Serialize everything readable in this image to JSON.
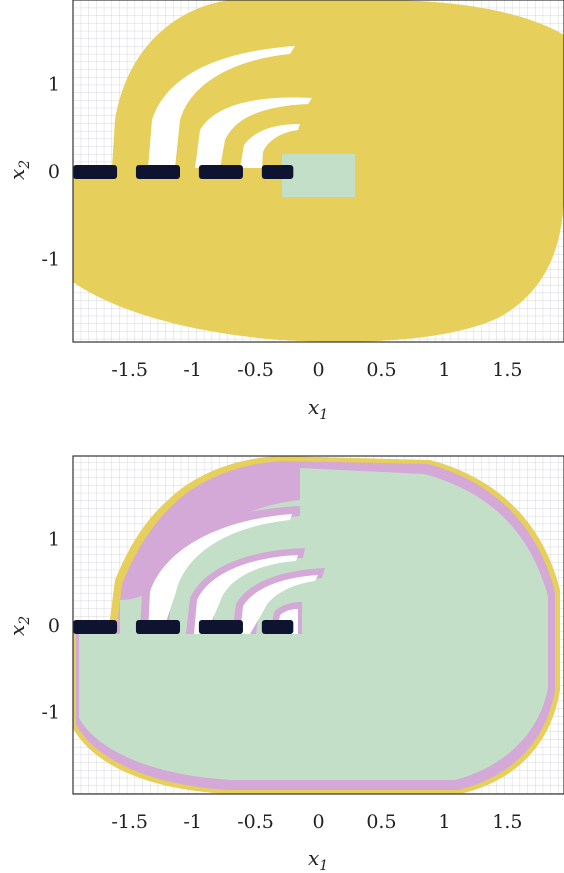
{
  "colors": {
    "yellow": "#e6cf5a",
    "green": "#c3dfc8",
    "purple": "#d4a9d8",
    "obstacle": "#0e1330",
    "grid": "#c9c9cf",
    "frame": "#333333"
  },
  "chart_data": [
    {
      "type": "heatmap",
      "xlim": [
        -1.95,
        1.95
      ],
      "ylim": [
        -1.95,
        1.95
      ],
      "grid": true,
      "xticks": [
        "-1.5",
        "-1",
        "-0.5",
        "0",
        "0.5",
        "1",
        "1.5"
      ],
      "xtick_values": [
        -1.5,
        -1,
        -0.5,
        0,
        0.5,
        1,
        1.5
      ],
      "yticks": [
        "1",
        "0",
        "-1"
      ],
      "ytick_values": [
        1,
        0,
        -1
      ],
      "xlabel": "x",
      "xlabel_sub": "1",
      "ylabel": "x",
      "ylabel_sub": "2",
      "obstacles": [
        [
          -1.95,
          -1.6
        ],
        [
          -1.45,
          -1.1
        ],
        [
          -0.95,
          -0.6
        ],
        [
          -0.45,
          -0.2
        ]
      ],
      "target_box": {
        "x": [
          -0.3,
          0.3
        ],
        "y": [
          -0.2,
          0.15
        ]
      },
      "regions": [
        "yellow",
        "green"
      ]
    },
    {
      "type": "heatmap",
      "xlim": [
        -1.95,
        1.95
      ],
      "ylim": [
        -1.95,
        1.95
      ],
      "grid": true,
      "xticks": [
        "-1.5",
        "-1",
        "-0.5",
        "0",
        "0.5",
        "1",
        "1.5"
      ],
      "xtick_values": [
        -1.5,
        -1,
        -0.5,
        0,
        0.5,
        1,
        1.5
      ],
      "yticks": [
        "1",
        "0",
        "-1"
      ],
      "ytick_values": [
        1,
        0,
        -1
      ],
      "xlabel": "x",
      "xlabel_sub": "1",
      "ylabel": "x",
      "ylabel_sub": "2",
      "obstacles": [
        [
          -1.95,
          -1.6
        ],
        [
          -1.45,
          -1.1
        ],
        [
          -0.95,
          -0.6
        ],
        [
          -0.45,
          -0.2
        ]
      ],
      "regions": [
        "green",
        "purple",
        "yellow"
      ]
    }
  ]
}
